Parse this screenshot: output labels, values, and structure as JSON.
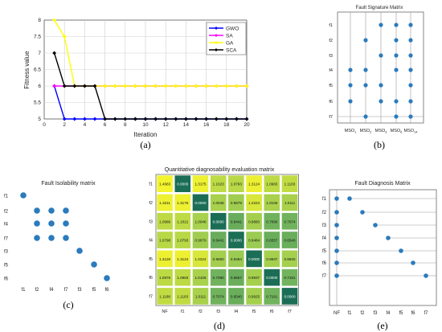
{
  "chart_data": [
    {
      "id": "a",
      "type": "line",
      "caption": "(a)",
      "title": "",
      "xlabel": "Iteration",
      "ylabel": "Fitness value",
      "xlim": [
        0,
        20
      ],
      "ylim": [
        5,
        8
      ],
      "x_ticks": [
        "0",
        "2",
        "4",
        "6",
        "8",
        "10",
        "12",
        "14",
        "16",
        "18",
        "20"
      ],
      "y_ticks": [
        "5",
        "5.5",
        "6",
        "6.5",
        "7",
        "7.5",
        "8"
      ],
      "x": [
        1,
        2,
        3,
        4,
        5,
        6,
        7,
        8,
        9,
        10,
        11,
        12,
        13,
        14,
        15,
        16,
        17,
        18,
        19,
        20
      ],
      "legend_position": "top-right",
      "series": [
        {
          "name": "GWO",
          "color": "#0000ff",
          "values": [
            6,
            5,
            5,
            5,
            5,
            5,
            5,
            5,
            5,
            5,
            5,
            5,
            5,
            5,
            5,
            5,
            5,
            5,
            5,
            5
          ]
        },
        {
          "name": "SA",
          "color": "#ff00ff",
          "values": [
            6,
            6,
            6,
            6,
            6,
            6,
            6,
            6,
            6,
            6,
            6,
            6,
            6,
            6,
            6,
            6,
            6,
            6,
            6,
            6
          ]
        },
        {
          "name": "GA",
          "color": "#ffff00",
          "values": [
            8,
            7.5,
            6,
            6,
            6,
            6,
            6,
            6,
            6,
            6,
            6,
            6,
            6,
            6,
            6,
            6,
            6,
            6,
            6,
            6
          ]
        },
        {
          "name": "SCA",
          "color": "#000000",
          "values": [
            7,
            6,
            6,
            6,
            6,
            5,
            5,
            5,
            5,
            5,
            5,
            5,
            5,
            5,
            5,
            5,
            5,
            5,
            5,
            5
          ]
        }
      ]
    },
    {
      "id": "b",
      "type": "scatter",
      "caption": "(b)",
      "title": "Fault Signature Matrix",
      "rows": [
        "f1",
        "f2",
        "f3",
        "f4",
        "f5",
        "f6",
        "f7"
      ],
      "columns": [
        "MSO1",
        "MSO2",
        "MSO3",
        "MSO6",
        "MSO14"
      ],
      "column_labels": [
        {
          "base": "MSO",
          "sub": "1"
        },
        {
          "base": "MSO",
          "sub": "2"
        },
        {
          "base": "MSO",
          "sub": "3"
        },
        {
          "base": "MSO",
          "sub": "6"
        },
        {
          "base": "MSO",
          "sub": "14"
        }
      ],
      "points": [
        [
          0,
          3
        ],
        [
          0,
          4
        ],
        [
          0,
          5
        ],
        [
          1,
          1
        ],
        [
          1,
          3
        ],
        [
          1,
          4
        ],
        [
          1,
          6
        ],
        [
          2,
          0
        ],
        [
          2,
          2
        ],
        [
          2,
          4
        ],
        [
          2,
          5
        ],
        [
          3,
          0
        ],
        [
          3,
          1
        ],
        [
          3,
          2
        ],
        [
          3,
          3
        ],
        [
          3,
          5
        ],
        [
          3,
          6
        ],
        [
          4,
          0
        ],
        [
          4,
          1
        ],
        [
          4,
          2
        ],
        [
          4,
          3
        ],
        [
          4,
          4
        ],
        [
          4,
          5
        ],
        [
          4,
          6
        ]
      ],
      "color": "#2b7bbd"
    },
    {
      "id": "c",
      "type": "scatter",
      "caption": "(c)",
      "title": "Fault Isolability matrix",
      "labels": [
        "f1",
        "f2",
        "f4",
        "f7",
        "f3",
        "f5",
        "f6"
      ],
      "points": [
        [
          0,
          0
        ],
        [
          1,
          1
        ],
        [
          2,
          1
        ],
        [
          3,
          1
        ],
        [
          1,
          2
        ],
        [
          2,
          2
        ],
        [
          3,
          2
        ],
        [
          1,
          3
        ],
        [
          2,
          3
        ],
        [
          3,
          3
        ],
        [
          4,
          4
        ],
        [
          5,
          5
        ],
        [
          6,
          6
        ]
      ],
      "color": "#2b7bbd"
    },
    {
      "id": "d",
      "type": "heatmap",
      "caption": "(d)",
      "title": "Quantitative diagnosability evaluation matrix",
      "rows": [
        "f1",
        "f2",
        "f3",
        "f4",
        "f5",
        "f6",
        "f7"
      ],
      "columns": [
        "NF",
        "f1",
        "f2",
        "f3",
        "f4",
        "f5",
        "f6",
        "f7"
      ],
      "values": [
        [
          "1.4683",
          "0.0000",
          "1.3175",
          "1.1023",
          "1.0793",
          "1.3124",
          "1.0983",
          "1.1183"
        ],
        [
          "1.3211",
          "1.3175",
          "0.0000",
          "1.0046",
          "0.9679",
          "1.2224",
          "1.0106",
          "1.0111"
        ],
        [
          "1.0986",
          "1.1021",
          "1.0046",
          "0.0000",
          "0.6441",
          "0.9860",
          "0.7090",
          "0.7074"
        ],
        [
          "1.0798",
          "1.0793",
          "0.9679",
          "0.6441",
          "0.0000",
          "0.9484",
          "0.6557",
          "0.6540"
        ],
        [
          "1.3126",
          "1.3124",
          "1.2224",
          "0.9860",
          "0.9484",
          "0.0000",
          "0.9937",
          "0.9925"
        ],
        [
          "1.0976",
          "1.0983",
          "1.0106",
          "0.7090",
          "0.6557",
          "0.9937",
          "0.0000",
          "0.7181"
        ],
        [
          "1.1188",
          "1.1183",
          "1.0111",
          "0.7074",
          "0.6540",
          "0.9925",
          "0.7181",
          "0.0000"
        ]
      ],
      "color_low": "#1b6e55",
      "color_mid": "#7dbd5e",
      "color_high": "#f4f42e",
      "vmin": 0,
      "vmax": 1.35
    },
    {
      "id": "e",
      "type": "scatter",
      "caption": "(e)",
      "title": "Fault Diagnosis Matrix",
      "rows": [
        "f1",
        "f2",
        "f3",
        "f4",
        "f5",
        "f6",
        "f7"
      ],
      "columns": [
        "NF",
        "f1",
        "f2",
        "f3",
        "f4",
        "f5",
        "f6",
        "f7"
      ],
      "points": [
        [
          0,
          0
        ],
        [
          1,
          0
        ],
        [
          0,
          1
        ],
        [
          2,
          1
        ],
        [
          0,
          2
        ],
        [
          3,
          2
        ],
        [
          0,
          3
        ],
        [
          4,
          3
        ],
        [
          0,
          4
        ],
        [
          5,
          4
        ],
        [
          0,
          5
        ],
        [
          6,
          5
        ],
        [
          0,
          6
        ],
        [
          7,
          6
        ]
      ],
      "color": "#2b7bbd"
    }
  ]
}
